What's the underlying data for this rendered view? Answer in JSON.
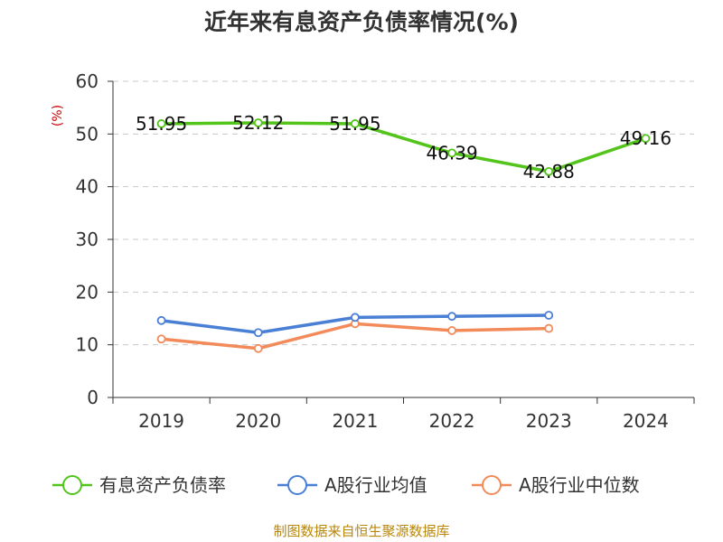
{
  "chart_data": {
    "type": "line",
    "title": "近年来有息资产负债率情况(%)",
    "ylabel": "(%)",
    "categories": [
      "2019",
      "2020",
      "2021",
      "2022",
      "2023",
      "2024"
    ],
    "ylim": [
      0,
      60
    ],
    "yticks": [
      0,
      10,
      20,
      30,
      40,
      50,
      60
    ],
    "grid": true,
    "legend_position": "bottom",
    "series": [
      {
        "name": "有息资产负债率",
        "color": "#52c41a",
        "values": [
          51.95,
          52.12,
          51.95,
          46.39,
          42.88,
          49.16
        ],
        "data_labels": [
          "51.95",
          "52.12",
          "51.95",
          "46.39",
          "42.88",
          "49.16"
        ]
      },
      {
        "name": "A股行业均值",
        "color": "#4a7fd6",
        "values": [
          14.6,
          12.3,
          15.2,
          15.4,
          15.6,
          null
        ]
      },
      {
        "name": "A股行业中位数",
        "color": "#f28a5a",
        "values": [
          11.1,
          9.3,
          14.0,
          12.7,
          13.1,
          null
        ]
      }
    ]
  },
  "source_text": "制图数据来自恒生聚源数据库"
}
